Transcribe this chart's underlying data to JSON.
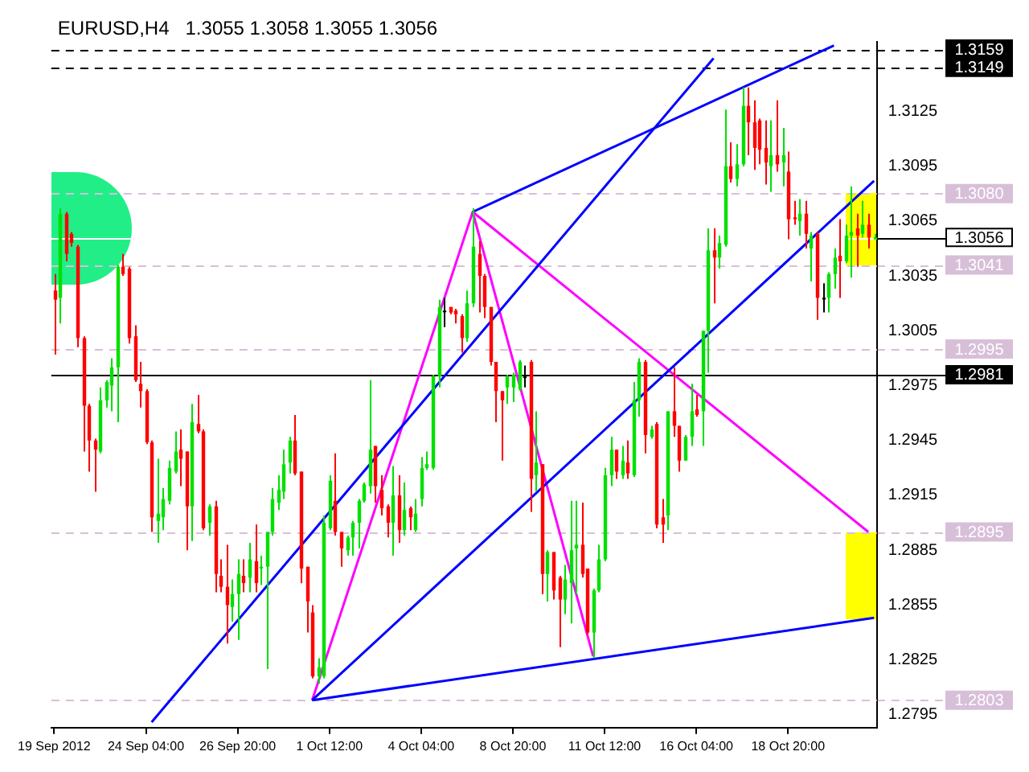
{
  "chart_data": {
    "type": "candlestick",
    "title": "EURUSD,H4",
    "subtitle": "1.3055 1.3058 1.3055 1.3056",
    "categories": [
      "19 Sep 2012",
      null,
      null,
      null,
      null,
      null,
      null,
      null,
      null,
      null,
      null,
      null,
      null,
      null,
      null,
      null,
      "24 Sep 04:00",
      null,
      null,
      null,
      null,
      null,
      null,
      null,
      null,
      null,
      null,
      null,
      null,
      null,
      null,
      null,
      "26 Sep 20:00",
      null,
      null,
      null,
      null,
      null,
      null,
      null,
      null,
      null,
      null,
      null,
      null,
      null,
      null,
      null,
      "1 Oct 12:00",
      null,
      null,
      null,
      null,
      null,
      null,
      null,
      null,
      null,
      null,
      null,
      null,
      null,
      null,
      null,
      "4 Oct 04:00",
      null,
      null,
      null,
      null,
      null,
      null,
      null,
      null,
      null,
      null,
      null,
      null,
      null,
      null,
      null,
      "8 Oct 20:00",
      null,
      null,
      null,
      null,
      null,
      null,
      null,
      null,
      null,
      null,
      null,
      null,
      null,
      null,
      null,
      "11 Oct 12:00",
      null,
      null,
      null,
      null,
      null,
      null,
      null,
      null,
      null,
      null,
      null,
      null,
      null,
      null,
      null,
      "16 Oct 04:00",
      null,
      null,
      null,
      null,
      null,
      null,
      null,
      null,
      null,
      null,
      null,
      null,
      null,
      null,
      null,
      "18 Oct 20:00",
      null,
      null,
      null,
      null,
      null,
      null,
      null,
      null,
      null,
      null,
      null,
      null,
      null,
      null,
      null
    ],
    "ohlc": [
      [
        1.3027,
        1.3036,
        1.2992,
        1.3022
      ],
      [
        1.3023,
        1.3072,
        1.3009,
        1.3069
      ],
      [
        1.3069,
        1.307,
        1.3043,
        1.3047
      ],
      [
        1.3058,
        1.3059,
        1.3051,
        1.3053
      ],
      [
        1.3051,
        1.3052,
        1.2996,
        1.3001
      ],
      [
        1.3001,
        1.3002,
        1.2939,
        1.2964
      ],
      [
        1.2964,
        1.2965,
        1.2928,
        1.2945
      ],
      [
        1.2945,
        1.2946,
        1.2917,
        1.294
      ],
      [
        1.2939,
        1.2974,
        1.2938,
        1.2967
      ],
      [
        1.2967,
        1.2978,
        1.2963,
        1.2977
      ],
      [
        1.2975,
        1.299,
        1.2961,
        1.2985
      ],
      [
        1.2985,
        1.3041,
        1.2955,
        1.304
      ],
      [
        1.304,
        1.3047,
        1.3035,
        1.3036
      ],
      [
        1.3039,
        1.304,
        1.2998,
        1.3001
      ],
      [
        1.3002,
        1.3008,
        1.2977,
        1.2978
      ],
      [
        1.2976,
        1.2988,
        1.2963,
        1.2972
      ],
      [
        1.2972,
        1.2973,
        1.2943,
        1.2944
      ],
      [
        1.2944,
        1.2945,
        1.2895,
        1.2903
      ],
      [
        1.2901,
        1.2935,
        1.2889,
        1.2905
      ],
      [
        1.2903,
        1.2919,
        1.2896,
        1.2913
      ],
      [
        1.2912,
        1.2934,
        1.291,
        1.293
      ],
      [
        1.2928,
        1.295,
        1.2927,
        1.2939
      ],
      [
        1.294,
        1.2951,
        1.292,
        1.2935
      ],
      [
        1.2939,
        1.2939,
        1.2885,
        1.2909
      ],
      [
        1.2909,
        1.2965,
        1.289,
        1.2955
      ],
      [
        1.2954,
        1.297,
        1.2949,
        1.295
      ],
      [
        1.295,
        1.2951,
        1.2896,
        1.2897
      ],
      [
        1.29,
        1.291,
        1.2893,
        1.2909
      ],
      [
        1.2909,
        1.2912,
        1.2862,
        1.2872
      ],
      [
        1.2871,
        1.288,
        1.2862,
        1.2865
      ],
      [
        1.2865,
        1.2888,
        1.2834,
        1.2855
      ],
      [
        1.2854,
        1.2869,
        1.2846,
        1.2861
      ],
      [
        1.2861,
        1.288,
        1.2836,
        1.2872
      ],
      [
        1.2871,
        1.288,
        1.2862,
        1.2867
      ],
      [
        1.287,
        1.2889,
        1.2862,
        1.288
      ],
      [
        1.2879,
        1.2899,
        1.2862,
        1.2867
      ],
      [
        1.2875,
        1.2882,
        1.2866,
        1.2876
      ],
      [
        1.2876,
        1.2895,
        1.282,
        1.2895
      ],
      [
        1.2895,
        1.2919,
        1.2893,
        1.2913
      ],
      [
        1.2911,
        1.2926,
        1.2907,
        1.2918
      ],
      [
        1.2917,
        1.294,
        1.2913,
        1.2932
      ],
      [
        1.2933,
        1.2947,
        1.2927,
        1.2945
      ],
      [
        1.2945,
        1.2959,
        1.2926,
        1.2927
      ],
      [
        1.2928,
        1.2928,
        1.2867,
        1.2875
      ],
      [
        1.2876,
        1.2876,
        1.284,
        1.2857
      ],
      [
        1.2851,
        1.2855,
        1.2815,
        1.2816
      ],
      [
        1.2816,
        1.2826,
        1.2812,
        1.2821
      ],
      [
        1.2816,
        1.2904,
        1.2815,
        1.29
      ],
      [
        1.2897,
        1.2926,
        1.2896,
        1.2923
      ],
      [
        1.2912,
        1.2938,
        1.2893,
        1.2895
      ],
      [
        1.2895,
        1.2895,
        1.2876,
        1.2886
      ],
      [
        1.2885,
        1.2893,
        1.2882,
        1.2892
      ],
      [
        1.2892,
        1.2901,
        1.2882,
        1.29
      ],
      [
        1.29,
        1.2913,
        1.2886,
        1.2912
      ],
      [
        1.2912,
        1.2922,
        1.2911,
        1.2921
      ],
      [
        1.292,
        1.2978,
        1.2916,
        1.294
      ],
      [
        1.2942,
        1.2942,
        1.2911,
        1.292
      ],
      [
        1.2918,
        1.2926,
        1.2904,
        1.2908
      ],
      [
        1.2909,
        1.291,
        1.2892,
        1.29
      ],
      [
        1.29,
        1.2931,
        1.2882,
        1.2915
      ],
      [
        1.2915,
        1.2926,
        1.2889,
        1.2896
      ],
      [
        1.2896,
        1.2922,
        1.2893,
        1.2907
      ],
      [
        1.2908,
        1.2909,
        1.2896,
        1.2903
      ],
      [
        1.2896,
        1.2913,
        1.2895,
        1.2905
      ],
      [
        1.2913,
        1.2936,
        1.2909,
        1.293
      ],
      [
        1.293,
        1.2939,
        1.2929,
        1.2932
      ],
      [
        1.293,
        1.2981,
        1.2929,
        1.298
      ],
      [
        1.298,
        1.3022,
        1.2974,
        1.3018
      ],
      [
        1.3016,
        1.3023,
        1.3007,
        1.3016
      ],
      [
        1.3018,
        1.3018,
        1.3014,
        1.3015
      ],
      [
        1.3016,
        1.3017,
        1.3009,
        1.3014
      ],
      [
        1.3013,
        1.3014,
        1.2993,
        1.3001
      ],
      [
        1.3001,
        1.3027,
        1.2999,
        1.302
      ],
      [
        1.302,
        1.3072,
        1.3018,
        1.3051
      ],
      [
        1.3047,
        1.3054,
        1.3015,
        1.3035
      ],
      [
        1.3035,
        1.3036,
        1.3012,
        1.3018
      ],
      [
        1.3018,
        1.3018,
        1.2986,
        1.2988
      ],
      [
        1.2988,
        1.2988,
        1.2955,
        1.2972
      ],
      [
        1.2972,
        1.2972,
        1.2934,
        1.2967
      ],
      [
        1.2974,
        1.2981,
        1.2965,
        1.298
      ],
      [
        1.2974,
        1.2982,
        1.2966,
        1.2981
      ],
      [
        1.2973,
        1.2989,
        1.2972,
        1.2988
      ],
      [
        1.298,
        1.2986,
        1.2974,
        1.298
      ],
      [
        1.2988,
        1.2989,
        1.2906,
        1.2924
      ],
      [
        1.2926,
        1.2961,
        1.2917,
        1.2933
      ],
      [
        1.2932,
        1.2932,
        1.2861,
        1.2872
      ],
      [
        1.2872,
        1.2885,
        1.2857,
        1.2884
      ],
      [
        1.2884,
        1.2884,
        1.2858,
        1.2863
      ],
      [
        1.287,
        1.2871,
        1.2832,
        1.2858
      ],
      [
        1.2858,
        1.2877,
        1.285,
        1.2869
      ],
      [
        1.2867,
        1.2912,
        1.2845,
        1.2885
      ],
      [
        1.2886,
        1.2912,
        1.2861,
        1.2888
      ],
      [
        1.2888,
        1.2911,
        1.287,
        1.2872
      ],
      [
        1.2875,
        1.2875,
        1.2839,
        1.284
      ],
      [
        1.284,
        1.2864,
        1.2826,
        1.2863
      ],
      [
        1.2863,
        1.2888,
        1.2862,
        1.288
      ],
      [
        1.288,
        1.293,
        1.2879,
        1.2926
      ],
      [
        1.2926,
        1.2947,
        1.292,
        1.294
      ],
      [
        1.294,
        1.294,
        1.2924,
        1.2928
      ],
      [
        1.2926,
        1.2942,
        1.2924,
        1.2934
      ],
      [
        1.2933,
        1.2945,
        1.2924,
        1.2927
      ],
      [
        1.2926,
        1.2977,
        1.2925,
        1.2967
      ],
      [
        1.2967,
        1.299,
        1.2958,
        1.2988
      ],
      [
        1.2988,
        1.2989,
        1.2938,
        1.2948
      ],
      [
        1.2947,
        1.2953,
        1.2946,
        1.2951
      ],
      [
        1.2954,
        1.2955,
        1.2897,
        1.2899
      ],
      [
        1.2903,
        1.2913,
        1.2889,
        1.2899
      ],
      [
        1.2904,
        1.2961,
        1.2896,
        1.2961
      ],
      [
        1.2961,
        1.2985,
        1.2947,
        1.2953
      ],
      [
        1.2953,
        1.2953,
        1.2928,
        1.2934
      ],
      [
        1.2934,
        1.2948,
        1.2934,
        1.2947
      ],
      [
        1.2947,
        1.2976,
        1.2942,
        1.2961
      ],
      [
        1.2962,
        1.297,
        1.2958,
        1.2959
      ],
      [
        1.2961,
        1.3005,
        1.2942,
        1.3005
      ],
      [
        1.3005,
        1.3061,
        1.2982,
        1.3049
      ],
      [
        1.3049,
        1.3061,
        1.302,
        1.3045
      ],
      [
        1.3045,
        1.3057,
        1.3039,
        1.3053
      ],
      [
        1.3052,
        1.3126,
        1.3051,
        1.3095
      ],
      [
        1.3095,
        1.3108,
        1.3086,
        1.3088
      ],
      [
        1.3088,
        1.3107,
        1.3084,
        1.3096
      ],
      [
        1.3096,
        1.3138,
        1.3095,
        1.3128
      ],
      [
        1.3128,
        1.3138,
        1.3101,
        1.3119
      ],
      [
        1.3119,
        1.3131,
        1.3093,
        1.3105
      ],
      [
        1.312,
        1.3121,
        1.3096,
        1.3104
      ],
      [
        1.3105,
        1.312,
        1.3085,
        1.3097
      ],
      [
        1.3095,
        1.312,
        1.3081,
        1.3101
      ],
      [
        1.3101,
        1.3131,
        1.3092,
        1.3096
      ],
      [
        1.3097,
        1.3116,
        1.3084,
        1.3101
      ],
      [
        1.3092,
        1.3103,
        1.3055,
        1.3066
      ],
      [
        1.3067,
        1.3076,
        1.3063,
        1.3066
      ],
      [
        1.3065,
        1.3077,
        1.3057,
        1.3069
      ],
      [
        1.3069,
        1.3076,
        1.305,
        1.3058
      ],
      [
        1.305,
        1.3059,
        1.3032,
        1.3057
      ],
      [
        1.3058,
        1.3059,
        1.3011,
        1.3023
      ],
      [
        1.3023,
        1.3031,
        1.3015,
        1.3023
      ],
      [
        1.3023,
        1.3037,
        1.3015,
        1.3036
      ],
      [
        1.3036,
        1.305,
        1.3028,
        1.3045
      ],
      [
        1.3046,
        1.3066,
        1.3023,
        1.3043
      ],
      [
        1.3043,
        1.3063,
        1.3042,
        1.3057
      ],
      [
        1.3057,
        1.3084,
        1.3034,
        1.3059
      ],
      [
        1.3061,
        1.3069,
        1.304,
        1.3057
      ],
      [
        1.3058,
        1.3076,
        1.3056,
        1.3063
      ],
      [
        1.3063,
        1.3069,
        1.305,
        1.3056
      ],
      [
        1.3055,
        1.3058,
        1.3055,
        1.3056
      ]
    ],
    "series": [
      {
        "type": "line",
        "color": "#0000ff",
        "values": [
          null,
          null,
          null,
          null,
          null,
          null,
          null,
          null,
          null,
          null,
          null,
          null,
          null,
          null,
          null,
          null,
          null,
          1.2791,
          null,
          null,
          null,
          null,
          null,
          null,
          null,
          null,
          null,
          null,
          null,
          null,
          null,
          null,
          null,
          null,
          null,
          null,
          null,
          null,
          null,
          null,
          null,
          null,
          null,
          null,
          null,
          null,
          null,
          null,
          null,
          null,
          null,
          null,
          null,
          null,
          null,
          null,
          null,
          null,
          null,
          null,
          null,
          null,
          null,
          null,
          null,
          null,
          null,
          null,
          null,
          null,
          null,
          null,
          null,
          null,
          null,
          null,
          null,
          null,
          null,
          null,
          null,
          null,
          null,
          null,
          null,
          null,
          null,
          null,
          null,
          null,
          null,
          null,
          null,
          null,
          null,
          null,
          null,
          null,
          null,
          null,
          null,
          null,
          null,
          null,
          null,
          null,
          null,
          null,
          null,
          null,
          null,
          null,
          null,
          null,
          null,
          1.3154,
          null,
          null,
          null,
          null,
          null,
          null,
          null,
          null,
          null,
          null,
          null,
          null,
          null,
          null,
          null,
          null,
          null,
          null,
          null,
          null,
          null,
          null,
          null,
          null,
          null,
          null,
          null,
          null
        ]
      },
      {
        "type": "line",
        "color": "#0000ff",
        "values": [
          null,
          null,
          null,
          null,
          null,
          null,
          null,
          null,
          null,
          null,
          null,
          null,
          null,
          null,
          null,
          null,
          null,
          null,
          null,
          null,
          null,
          null,
          null,
          null,
          null,
          null,
          null,
          null,
          null,
          null,
          null,
          null,
          null,
          null,
          null,
          null,
          null,
          null,
          null,
          null,
          null,
          null,
          null,
          null,
          null,
          null,
          null,
          null,
          null,
          null,
          null,
          null,
          null,
          null,
          null,
          null,
          null,
          null,
          null,
          null,
          null,
          null,
          null,
          null,
          null,
          null,
          null,
          null,
          null,
          null,
          null,
          null,
          null,
          1.307,
          null,
          null,
          null,
          null,
          null,
          null,
          null,
          null,
          null,
          null,
          null,
          null,
          null,
          null,
          null,
          null,
          null,
          null,
          null,
          null,
          null,
          null,
          null,
          null,
          null,
          null,
          null,
          null,
          null,
          null,
          null,
          null,
          null,
          null,
          null,
          null,
          null,
          null,
          null,
          null,
          null,
          null,
          null,
          null,
          null,
          null,
          null,
          null,
          null,
          null,
          null,
          null,
          null,
          null,
          null,
          null,
          null,
          null,
          null,
          null,
          null,
          null,
          1.3161,
          null,
          null,
          null,
          null,
          null,
          null,
          null
        ]
      },
      {
        "type": "line",
        "color": "#0000ff",
        "values": [
          null,
          null,
          null,
          null,
          null,
          null,
          null,
          null,
          null,
          null,
          null,
          null,
          null,
          null,
          null,
          null,
          null,
          null,
          null,
          null,
          null,
          null,
          null,
          null,
          null,
          null,
          null,
          null,
          null,
          null,
          null,
          null,
          null,
          null,
          null,
          null,
          null,
          null,
          null,
          null,
          null,
          null,
          null,
          null,
          null,
          1.2803,
          null,
          null,
          null,
          null,
          null,
          null,
          null,
          null,
          null,
          null,
          null,
          null,
          null,
          null,
          null,
          null,
          null,
          null,
          null,
          null,
          null,
          null,
          null,
          null,
          null,
          null,
          null,
          null,
          null,
          null,
          null,
          null,
          null,
          null,
          null,
          null,
          null,
          null,
          null,
          null,
          null,
          null,
          null,
          null,
          null,
          null,
          null,
          null,
          null,
          null,
          null,
          null,
          null,
          null,
          null,
          null,
          null,
          null,
          null,
          null,
          null,
          null,
          null,
          null,
          null,
          null,
          null,
          null,
          null,
          null,
          null,
          null,
          null,
          null,
          null,
          null,
          null,
          null,
          null,
          null,
          null,
          null,
          null,
          null,
          null,
          null,
          null,
          null,
          null,
          null,
          null,
          null,
          null,
          null,
          null,
          null,
          null,
          1.3087
        ]
      },
      {
        "type": "line",
        "color": "#0000ff",
        "values": [
          null,
          null,
          null,
          null,
          null,
          null,
          null,
          null,
          null,
          null,
          null,
          null,
          null,
          null,
          null,
          null,
          null,
          null,
          null,
          null,
          null,
          null,
          null,
          null,
          null,
          null,
          null,
          null,
          null,
          null,
          null,
          null,
          null,
          null,
          null,
          null,
          null,
          null,
          null,
          null,
          null,
          null,
          null,
          null,
          null,
          1.2803,
          null,
          null,
          null,
          null,
          null,
          null,
          null,
          null,
          null,
          null,
          null,
          null,
          null,
          null,
          null,
          null,
          null,
          null,
          null,
          null,
          null,
          null,
          null,
          null,
          null,
          null,
          null,
          null,
          null,
          null,
          null,
          null,
          null,
          null,
          null,
          null,
          null,
          null,
          null,
          null,
          null,
          null,
          null,
          null,
          null,
          null,
          null,
          null,
          null,
          null,
          null,
          null,
          null,
          null,
          null,
          null,
          null,
          null,
          null,
          null,
          null,
          null,
          null,
          null,
          null,
          null,
          null,
          null,
          null,
          null,
          null,
          null,
          null,
          null,
          null,
          null,
          null,
          null,
          null,
          null,
          null,
          null,
          null,
          null,
          null,
          null,
          null,
          null,
          null,
          null,
          null,
          null,
          null,
          null,
          null,
          null,
          null,
          1.2848
        ]
      },
      {
        "type": "line",
        "color": "#ff00ff",
        "values": [
          null,
          null,
          null,
          null,
          null,
          null,
          null,
          null,
          null,
          null,
          null,
          null,
          null,
          null,
          null,
          null,
          null,
          null,
          null,
          null,
          null,
          null,
          null,
          null,
          null,
          null,
          null,
          null,
          null,
          null,
          null,
          null,
          null,
          null,
          null,
          null,
          null,
          null,
          null,
          null,
          null,
          null,
          null,
          null,
          null,
          1.2803,
          null,
          null,
          null,
          null,
          null,
          null,
          null,
          null,
          null,
          null,
          null,
          null,
          null,
          null,
          null,
          null,
          null,
          null,
          null,
          null,
          null,
          null,
          null,
          null,
          null,
          null,
          null,
          1.307,
          null,
          null,
          null,
          null,
          null,
          null,
          null,
          null,
          null,
          null,
          null,
          null,
          null,
          null,
          null,
          null,
          null,
          null,
          null,
          null,
          1.2827,
          null,
          null,
          null,
          null,
          null,
          null,
          null,
          null,
          null,
          null,
          null,
          null,
          null,
          null,
          null,
          null,
          null,
          null,
          null,
          null,
          null,
          null,
          null,
          null,
          null,
          null,
          null,
          null,
          null,
          null,
          null,
          null,
          null,
          null,
          null,
          null,
          null,
          null,
          null,
          null,
          null,
          null,
          null,
          null,
          null,
          null,
          null,
          null,
          null
        ]
      },
      {
        "type": "line",
        "color": "#ff00ff",
        "values": [
          null,
          null,
          null,
          null,
          null,
          null,
          null,
          null,
          null,
          null,
          null,
          null,
          null,
          null,
          null,
          null,
          null,
          null,
          null,
          null,
          null,
          null,
          null,
          null,
          null,
          null,
          null,
          null,
          null,
          null,
          null,
          null,
          null,
          null,
          null,
          null,
          null,
          null,
          null,
          null,
          null,
          null,
          null,
          null,
          null,
          null,
          null,
          null,
          null,
          null,
          null,
          null,
          null,
          null,
          null,
          null,
          null,
          null,
          null,
          null,
          null,
          null,
          null,
          null,
          null,
          null,
          null,
          null,
          null,
          null,
          null,
          null,
          null,
          1.307,
          null,
          null,
          null,
          null,
          null,
          null,
          null,
          null,
          null,
          null,
          null,
          null,
          null,
          null,
          null,
          null,
          null,
          null,
          null,
          null,
          null,
          null,
          null,
          null,
          null,
          null,
          null,
          null,
          null,
          null,
          null,
          null,
          null,
          null,
          null,
          null,
          null,
          null,
          null,
          null,
          null,
          null,
          null,
          null,
          null,
          null,
          null,
          null,
          null,
          null,
          null,
          null,
          null,
          null,
          null,
          null,
          null,
          null,
          null,
          null,
          null,
          null,
          null,
          null,
          null,
          null,
          null,
          null,
          1.2895,
          null
        ]
      }
    ],
    "ylim": [
      1.2788,
      1.3163
    ],
    "yticks": [
      1.2795,
      1.2825,
      1.2855,
      1.2885,
      1.2915,
      1.2945,
      1.2975,
      1.3005,
      1.3035,
      1.3065,
      1.3095,
      1.3125
    ],
    "ref_lines": [
      {
        "axis": "y",
        "value": 1.3159,
        "label": "1.3159",
        "color": "#000000",
        "line_style": "dashed"
      },
      {
        "axis": "y",
        "value": 1.3149,
        "label": "1.3149",
        "color": "#000000",
        "line_style": "dashed"
      },
      {
        "axis": "y",
        "value": 1.308,
        "label": "1.3080",
        "color": "#d8bfd8",
        "line_style": "dashed"
      },
      {
        "axis": "y",
        "value": 1.3056,
        "label": "1.3056",
        "color": "#ffffff",
        "line_style": "solid"
      },
      {
        "axis": "y",
        "value": 1.3041,
        "label": "1.3041",
        "color": "#d8bfd8",
        "line_style": "dashed"
      },
      {
        "axis": "y",
        "value": 1.2995,
        "label": "1.2995",
        "color": "#d8bfd8",
        "line_style": "dashed"
      },
      {
        "axis": "y",
        "value": 1.2981,
        "label": "1.2981",
        "color": "#000000",
        "line_style": "solid"
      },
      {
        "axis": "y",
        "value": 1.2895,
        "label": "1.2895",
        "color": "#d8bfd8",
        "line_style": "dashed"
      },
      {
        "axis": "y",
        "value": 1.2803,
        "label": "1.2803",
        "color": "#d8bfd8",
        "line_style": "dashed"
      }
    ]
  }
}
